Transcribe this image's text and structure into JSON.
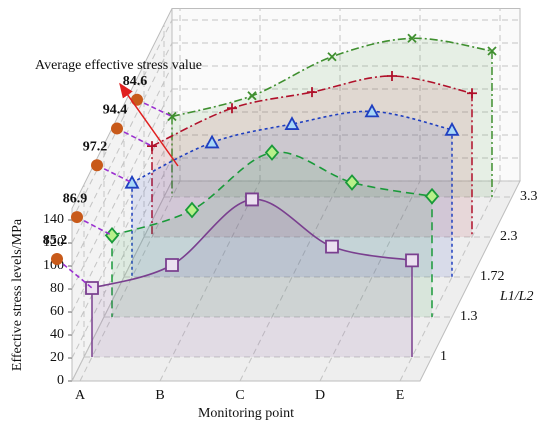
{
  "chart_data": {
    "type": "line3d",
    "y_label": "Effective stress levels/MPa",
    "x_label": "Monitoring point",
    "z_label": "L1/L2",
    "annotation": "Average effective stress value",
    "categories": [
      "A",
      "B",
      "C",
      "D",
      "E"
    ],
    "z_categories": [
      "1",
      "1.3",
      "1.72",
      "2.3",
      "3.3"
    ],
    "ylim": [
      0,
      150
    ],
    "yticks": [
      0,
      20,
      40,
      60,
      80,
      100,
      120,
      140
    ],
    "grid": true,
    "series": [
      {
        "color": "#7a3f8f",
        "marker": "square",
        "marker_fill": "#ebe0f0",
        "dash": "solid",
        "values": [
          60,
          80,
          137,
          96,
          84
        ]
      },
      {
        "color": "#1a9a3a",
        "marker": "diamond",
        "marker_fill": "#b8f08a",
        "dash": "dashed",
        "values": [
          71,
          93,
          143,
          117,
          105
        ]
      },
      {
        "color": "#1f3fc0",
        "marker": "triangle",
        "marker_fill": "#a8d8f8",
        "dash": "dotted",
        "values": [
          82,
          117,
          133,
          144,
          128
        ]
      },
      {
        "color": "#b0102a",
        "marker": "plus",
        "marker_fill": "none",
        "dash": "dashdot",
        "values": [
          79,
          112,
          126,
          140,
          125
        ]
      },
      {
        "color": "#3f8f2f",
        "marker": "x",
        "marker_fill": "none",
        "dash": "dashdot",
        "values": [
          70,
          88,
          122,
          138,
          127
        ]
      }
    ],
    "averages": {
      "color": "#c85a1a",
      "label_color": "#8b3a0f",
      "line_color": "#9b30d0",
      "values": [
        85.2,
        86.9,
        97.2,
        94.4,
        84.6
      ]
    }
  }
}
